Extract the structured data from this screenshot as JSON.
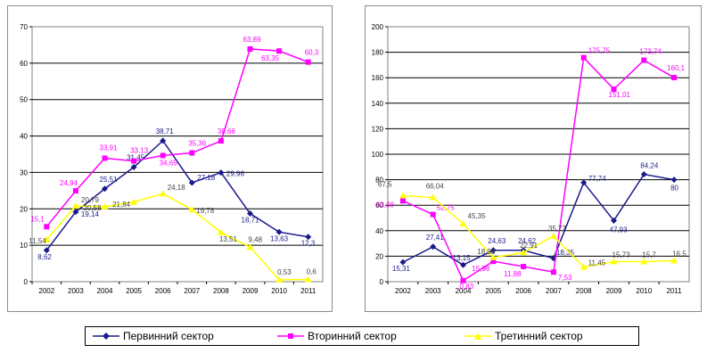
{
  "legend": {
    "series": [
      {
        "name": "Первинний сектор",
        "color": "#1a1a8c",
        "marker": "diamond"
      },
      {
        "name": "Вторинний сектор",
        "color": "#ff00ff",
        "marker": "square"
      },
      {
        "name": "Третинний сектор",
        "color": "#ffff00",
        "marker": "triangle"
      }
    ]
  },
  "chart_data": [
    {
      "type": "line",
      "categories": [
        "2002",
        "2003",
        "2004",
        "2005",
        "2006",
        "2007",
        "2008",
        "2009",
        "2010",
        "2011"
      ],
      "ylim": [
        0,
        70
      ],
      "yticks": [
        0,
        10,
        20,
        30,
        40,
        50,
        60,
        70
      ],
      "grid": true,
      "series": [
        {
          "name": "Первинний сектор",
          "values": [
            8.62,
            19.14,
            25.51,
            31.45,
            38.71,
            27.18,
            29.96,
            18.71,
            13.63,
            12.3
          ],
          "labels": [
            "8,62",
            "19,14",
            "25,51",
            "31,45",
            "38,71",
            "27,18",
            "29,96",
            "18,71",
            "13,63",
            "12,3"
          ]
        },
        {
          "name": "Вторинний сектор",
          "values": [
            15.1,
            24.94,
            33.91,
            33.13,
            34.65,
            35.36,
            38.66,
            63.89,
            63.35,
            60.3
          ],
          "labels": [
            "15,1",
            "24,94",
            "33,91",
            "33,13",
            "34,65",
            "35,36",
            "38,66",
            "63,89",
            "63,35",
            "60,3"
          ]
        },
        {
          "name": "Третинний сектор",
          "values": [
            11.54,
            20.79,
            20.58,
            21.84,
            24.18,
            19.78,
            13.51,
            9.48,
            0.53,
            0.6
          ],
          "labels": [
            "11,54",
            "20,79",
            "20,58",
            "21,84",
            "24,18",
            "19,78",
            "13,51",
            "9,48",
            "0,53",
            "0,6"
          ]
        }
      ]
    },
    {
      "type": "line",
      "categories": [
        "2002",
        "2003",
        "2004",
        "2005",
        "2006",
        "2007",
        "2008",
        "2009",
        "2010",
        "2011"
      ],
      "ylim": [
        0,
        200
      ],
      "yticks": [
        0,
        20,
        40,
        60,
        80,
        100,
        120,
        140,
        160,
        180,
        200
      ],
      "grid": true,
      "series": [
        {
          "name": "Первинний сектор",
          "values": [
            15.31,
            27.41,
            13.15,
            24.63,
            24.62,
            18.35,
            77.74,
            47.93,
            84.24,
            80
          ],
          "labels": [
            "15,31",
            "27,41",
            "13,15",
            "24,63",
            "24,62",
            "18,35",
            "77,74",
            "47,93",
            "84,24",
            "80"
          ]
        },
        {
          "name": "Вторинний сектор",
          "values": [
            63.38,
            52.75,
            0.83,
            15.98,
            11.88,
            7.53,
            175.75,
            151.01,
            173.74,
            160.1
          ],
          "labels": [
            "63,38",
            "52,75",
            "0,83",
            "15,98",
            "11,88",
            "7,53",
            "175,75",
            "151,01",
            "173,74",
            "160,1"
          ]
        },
        {
          "name": "Третинний сектор",
          "values": [
            67.5,
            66.04,
            45.35,
            18.98,
            22.91,
            35.77,
            11.45,
            15.73,
            15.7,
            16.5
          ],
          "labels": [
            "67,5",
            "66,04",
            "45,35",
            "18,98",
            "22,91",
            "35,77",
            "11,45",
            "15,73",
            "15,7",
            "16,5"
          ]
        }
      ]
    }
  ]
}
